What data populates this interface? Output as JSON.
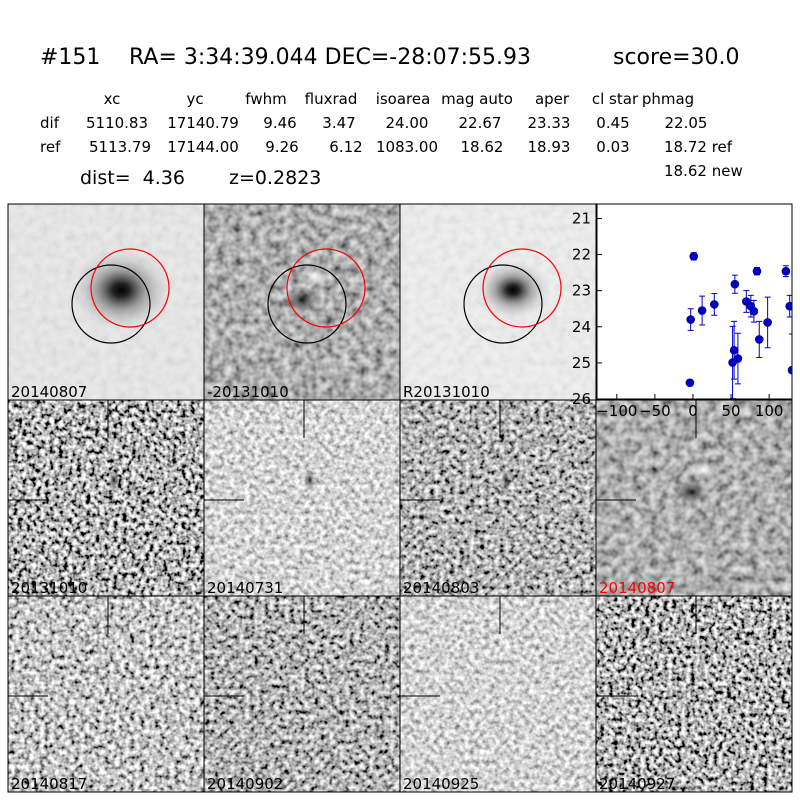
{
  "header": {
    "id": "#151",
    "coords": "RA= 3:34:39.044 DEC=-28:07:55.93",
    "score": "score=30.0"
  },
  "table": {
    "columns": [
      "xc",
      "yc",
      "fwhm",
      "fluxrad",
      "isoarea",
      "mag auto",
      "aper",
      "cl star",
      "phmag"
    ],
    "rows": [
      {
        "name": "dif",
        "cells": [
          "5110.83",
          "17140.79",
          "9.46",
          "3.47",
          "24.00",
          "22.67",
          "23.33",
          "0.45",
          "22.05"
        ]
      },
      {
        "name": "ref",
        "cells": [
          "5113.79",
          "17144.00",
          "9.26",
          "6.12",
          "1083.00",
          "18.62",
          "18.93",
          "0.03",
          "18.72 ref"
        ]
      }
    ],
    "extra": "18.62 new"
  },
  "dist": "dist=  4.36",
  "redshift": "z=0.2823",
  "stamps": [
    {
      "label": "20140807"
    },
    {
      "label": "-20131010"
    },
    {
      "label": "R20131010"
    },
    {
      "label": "20131010"
    },
    {
      "label": "20140731"
    },
    {
      "label": "20140803"
    },
    {
      "label": "20140807"
    },
    {
      "label": "20140817"
    },
    {
      "label": "20140902"
    },
    {
      "label": "20140925"
    },
    {
      "label": "20140927"
    }
  ],
  "chart_data": {
    "type": "scatter",
    "color": "#0000cc",
    "x": [
      -4,
      -3,
      1,
      12,
      28,
      52,
      54,
      55,
      59,
      70,
      76,
      80,
      84,
      87,
      98,
      122,
      127,
      130
    ],
    "values": [
      25.55,
      23.8,
      22.05,
      23.55,
      23.38,
      24.99,
      24.65,
      22.82,
      24.88,
      23.3,
      23.43,
      23.57,
      22.46,
      24.35,
      23.88,
      22.46,
      23.43,
      25.2
    ],
    "errors": [
      0.08,
      0.3,
      0.1,
      0.4,
      0.3,
      1.0,
      0.8,
      0.25,
      0.7,
      0.3,
      0.3,
      0.3,
      0.1,
      0.5,
      0.7,
      0.15,
      0.3,
      1.0
    ],
    "xlim": [
      -126,
      130
    ],
    "ylim": [
      20.6,
      26
    ],
    "invert_y": true,
    "xticks": [
      {
        "value": -100,
        "label": "−100"
      },
      {
        "value": -50,
        "label": "−50"
      },
      0,
      50,
      100
    ],
    "yticks": [
      21,
      22,
      23,
      24,
      25,
      26
    ]
  }
}
